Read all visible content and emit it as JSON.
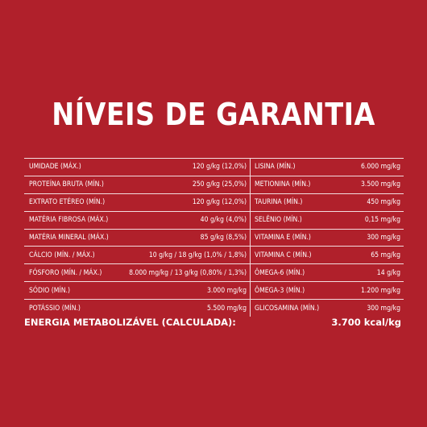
{
  "title": "NÍVEIS DE GARANTIA",
  "left_rows": [
    {
      "label": "UMIDADE (MÁX.)",
      "value": "120 g/kg (12,0%)"
    },
    {
      "label": "PROTEÍNA BRUTA (MÍN.)",
      "value": "250 g/kg (25,0%)"
    },
    {
      "label": "EXTRATO ETÉREO (MÍN.)",
      "value": "120 g/kg (12,0%)"
    },
    {
      "label": "MATÉRIA FIBROSA (MÁX.)",
      "value": "40 g/kg (4,0%)"
    },
    {
      "label": "MATÉRIA MINERAL (MÁX.)",
      "value": "85 g/kg (8,5%)"
    },
    {
      "label": "CÁLCIO (MÍN. / MÁX.)",
      "value": "10 g/kg / 18 g/kg (1,0% / 1,8%)"
    },
    {
      "label": "FÓSFORO (MÍN. / MÁX.)",
      "value": "8.000 mg/kg / 13 g/kg (0,80% / 1,3%)"
    },
    {
      "label": "SÓDIO (MÍN.)",
      "value": "3.000 mg/kg"
    },
    {
      "label": "POTÁSSIO (MÍN.)",
      "value": "5.500 mg/kg"
    }
  ],
  "right_rows": [
    {
      "label": "LISINA (MÍN.)",
      "value": "6.000 mg/kg"
    },
    {
      "label": "METIONINA (MÍN.)",
      "value": "3.500 mg/kg"
    },
    {
      "label": "TAURINA (MÍN.)",
      "value": "450 mg/kg"
    },
    {
      "label": "SELÊNIO (MÍN.)",
      "value": "0,15 mg/kg"
    },
    {
      "label": "VITAMINA E (MÍN.)",
      "value": "300 mg/kg"
    },
    {
      "label": "VITAMINA C (MÍN.)",
      "value": "65 mg/kg"
    },
    {
      "label": "ÔMEGA-6 (MÍN.)",
      "value": "14 g/kg"
    },
    {
      "label": "ÔMEGA-3 (MÍN.)",
      "value": "1.200 mg/kg"
    },
    {
      "label": "GLICOSAMINA (MÍN.)",
      "value": "300 mg/kg"
    }
  ],
  "energy": {
    "label": "ENERGIA METABOLIZÁVEL (CALCULADA):",
    "value": "3.700 kcal/kg"
  },
  "colors": {
    "background": "#b0202b",
    "text": "#ffffff"
  }
}
